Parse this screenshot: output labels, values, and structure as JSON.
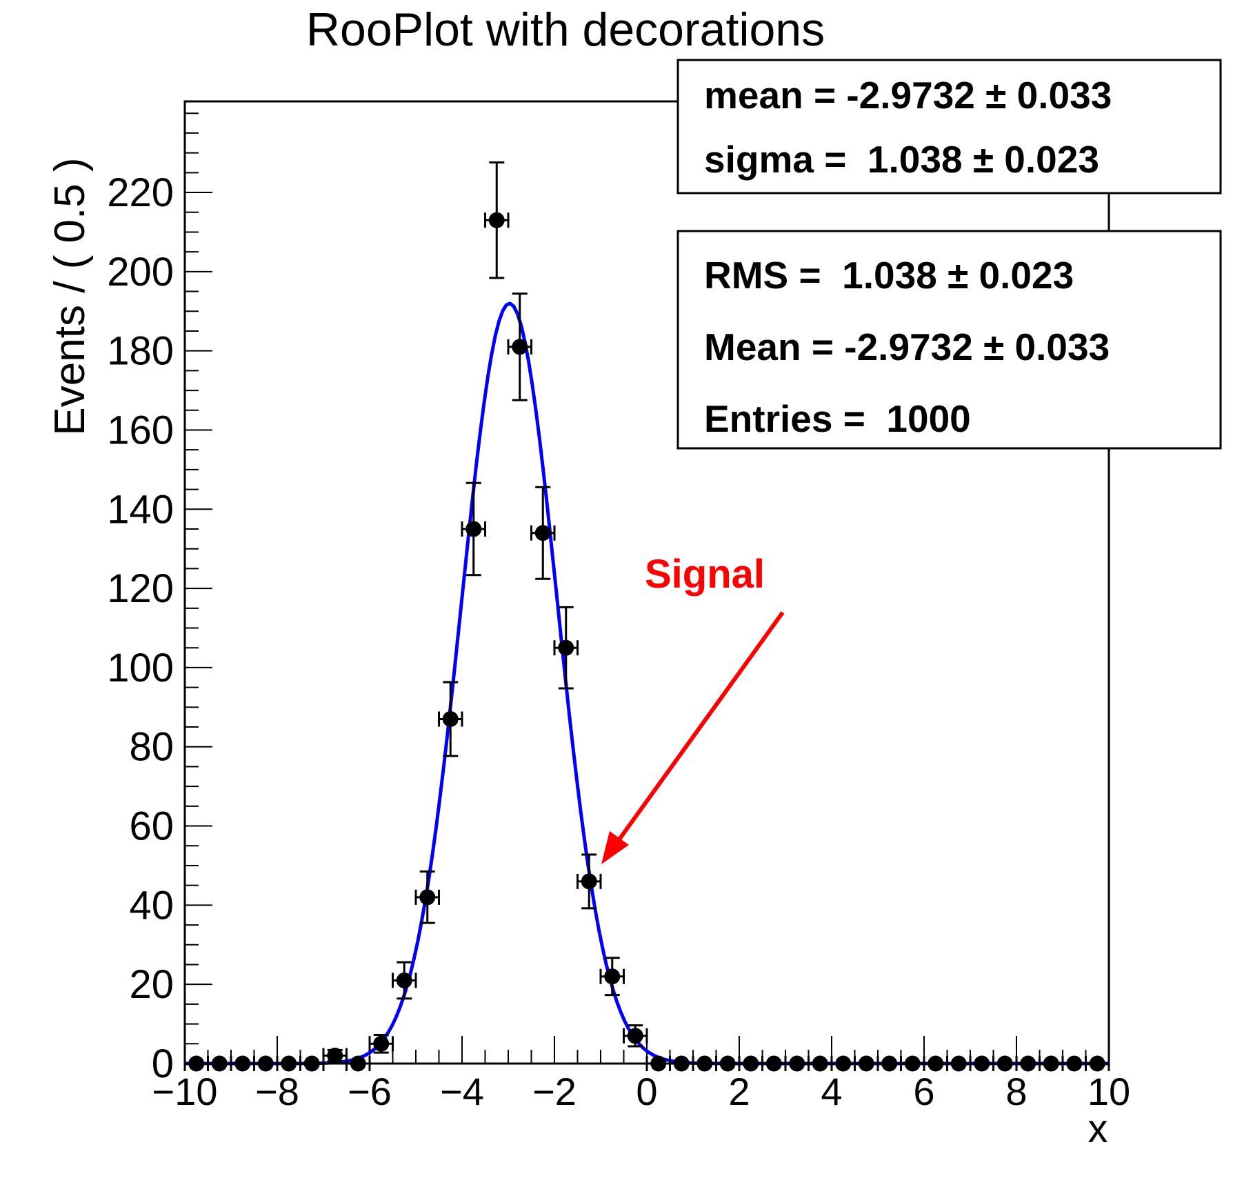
{
  "title": "RooPlot with decorations",
  "colors": {
    "background": "#ffffff",
    "frame": "#000000",
    "marker": "#000000",
    "fit_curve": "#0000ff",
    "annotation": "#ff0000",
    "text": "#000000"
  },
  "param_box": {
    "lines": [
      "mean = -2.9732 ± 0.033",
      "sigma =  1.038 ± 0.023"
    ]
  },
  "stat_box": {
    "lines": [
      "RMS =  1.038 ± 0.023",
      "Mean = -2.9732 ± 0.033",
      "Entries =  1000"
    ]
  },
  "annotation": {
    "label": "Signal"
  },
  "axes": {
    "x_title": "x",
    "y_title": "Events / ( 0.5 )"
  },
  "chart_data": {
    "type": "scatter",
    "subtype": "binned-data-points-with-gaussian-fit",
    "title": "RooPlot with decorations",
    "xlabel": "x",
    "ylabel": "Events / ( 0.5 )",
    "xlim": [
      -10,
      10
    ],
    "ylim": [
      0,
      243
    ],
    "grid": false,
    "legend": "none",
    "bin_width": 0.5,
    "x_tick_values": [
      -10,
      -8,
      -6,
      -4,
      -2,
      0,
      2,
      4,
      6,
      8,
      10
    ],
    "x_tick_labels": [
      "−10",
      "−8",
      "−6",
      "−4",
      "−2",
      "0",
      "2",
      "4",
      "6",
      "8",
      "10"
    ],
    "x_minor_step": 0.5,
    "y_tick_values": [
      0,
      20,
      40,
      60,
      80,
      100,
      120,
      140,
      160,
      180,
      200,
      220
    ],
    "y_tick_labels": [
      "0",
      "20",
      "40",
      "60",
      "80",
      "100",
      "120",
      "140",
      "160",
      "180",
      "200",
      "220"
    ],
    "y_minor_step": 5,
    "points": {
      "x": [
        -9.75,
        -9.25,
        -8.75,
        -8.25,
        -7.75,
        -7.25,
        -6.75,
        -6.25,
        -5.75,
        -5.25,
        -4.75,
        -4.25,
        -3.75,
        -3.25,
        -2.75,
        -2.25,
        -1.75,
        -1.25,
        -0.75,
        -0.25,
        0.25,
        0.75,
        1.25,
        1.75,
        2.25,
        2.75,
        3.25,
        3.75,
        4.25,
        4.75,
        5.25,
        5.75,
        6.25,
        6.75,
        7.25,
        7.75,
        8.25,
        8.75,
        9.25,
        9.75
      ],
      "y": [
        0,
        0,
        0,
        0,
        0,
        0,
        2,
        0,
        5,
        21,
        42,
        87,
        135,
        213,
        181,
        134,
        105,
        46,
        22,
        7,
        0,
        0,
        0,
        0,
        0,
        0,
        0,
        0,
        0,
        0,
        0,
        0,
        0,
        0,
        0,
        0,
        0,
        0,
        0,
        0
      ],
      "error_model": "sqrt(n)"
    },
    "fit_curve": {
      "shape": "gaussian",
      "mean": -2.9732,
      "sigma": 1.038,
      "peak_height": 192,
      "entries": 1000
    },
    "annotations": [
      {
        "text": "Signal",
        "color": "#ff0000",
        "arrow_points_to_bin": -1.25
      }
    ]
  }
}
